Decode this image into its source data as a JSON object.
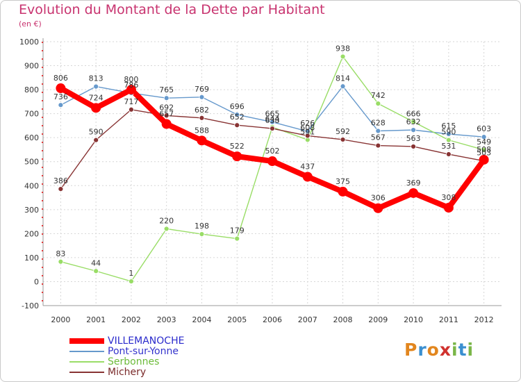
{
  "title": "Evolution du Montant de la Dette par Habitant",
  "subtitle": "(en €)",
  "logo": {
    "text": "Proxiti",
    "letters": [
      {
        "ch": "P",
        "color": "#e2861e"
      },
      {
        "ch": "r",
        "color": "#3a8fd0"
      },
      {
        "ch": "o",
        "color": "#e2861e"
      },
      {
        "ch": "x",
        "color": "#d0312d"
      },
      {
        "ch": "i",
        "color": "#7ab648"
      },
      {
        "ch": "t",
        "color": "#3a8fd0"
      },
      {
        "ch": "i",
        "color": "#7ab648"
      }
    ]
  },
  "chart_data": {
    "type": "line",
    "x": [
      "2000",
      "2001",
      "2002",
      "2003",
      "2004",
      "2005",
      "2006",
      "2007",
      "2008",
      "2009",
      "2010",
      "2011",
      "2012"
    ],
    "ylim": [
      -100,
      1000
    ],
    "yticks": [
      -100,
      0,
      100,
      200,
      300,
      400,
      500,
      600,
      700,
      800,
      900,
      1000
    ],
    "grid": true,
    "legend_position": "bottom-left",
    "series": [
      {
        "name": "VILLEMANOCHE",
        "color": "#ff0000",
        "width": 8,
        "marker": 7,
        "label_color": "#333333",
        "values": [
          806,
          724,
          800,
          657,
          588,
          522,
          502,
          437,
          375,
          306,
          369,
          308,
          508
        ],
        "labels": [
          "806",
          "724",
          "800",
          "657",
          "588",
          "522",
          "502",
          "437",
          "375",
          "306",
          "369",
          "308",
          "508"
        ]
      },
      {
        "name": "Pont-sur-Yonne",
        "color": "#6699cc",
        "width": 1.4,
        "marker": 3.5,
        "label_color": "#333333",
        "values": [
          736,
          813,
          786,
          765,
          769,
          696,
          665,
          626,
          814,
          628,
          632,
          615,
          603
        ],
        "labels": [
          "736",
          "813",
          "786",
          "765",
          "769",
          "696",
          "665",
          "626",
          "814",
          "628",
          "632",
          "615",
          "603"
        ]
      },
      {
        "name": "Serbonnes",
        "color": "#99dd66",
        "width": 1.4,
        "marker": 3.5,
        "label_color": "#333333",
        "values": [
          83,
          44,
          1,
          220,
          198,
          179,
          644,
          591,
          938,
          742,
          666,
          590,
          549
        ],
        "labels": [
          "83",
          "44",
          "1",
          "220",
          "198",
          "179",
          "644",
          "591",
          "938",
          "742",
          "666",
          "590",
          "549"
        ]
      },
      {
        "name": "Michery",
        "color": "#883333",
        "width": 1.4,
        "marker": 3.5,
        "label_color": "#333333",
        "values": [
          386,
          590,
          717,
          692,
          682,
          652,
          638,
          608,
          592,
          567,
          563,
          531,
          503
        ],
        "labels": [
          "386",
          "590",
          "717",
          "692",
          "682",
          "652",
          "638",
          "608",
          "592",
          "567",
          "563",
          "531",
          "503"
        ]
      }
    ]
  }
}
